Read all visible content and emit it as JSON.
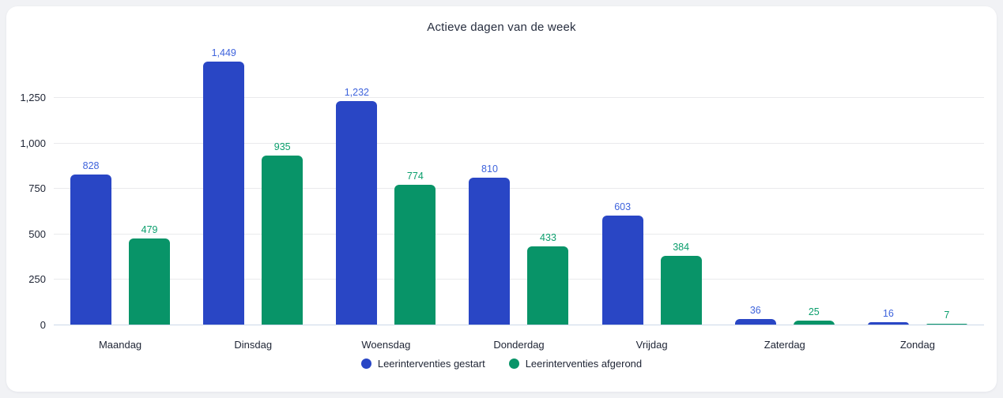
{
  "chart_data": {
    "type": "bar",
    "title": "Actieve dagen van de week",
    "categories": [
      "Maandag",
      "Dinsdag",
      "Woensdag",
      "Donderdag",
      "Vrijdag",
      "Zaterdag",
      "Zondag"
    ],
    "series": [
      {
        "name": "Leerinterventies gestart",
        "color": "#2946c5",
        "label_color": "#3e63dc",
        "values": [
          828,
          1449,
          1232,
          810,
          603,
          36,
          16
        ],
        "labels": [
          "828",
          "1,449",
          "1,232",
          "810",
          "603",
          "36",
          "16"
        ]
      },
      {
        "name": "Leerinterventies afgerond",
        "color": "#089468",
        "label_color": "#0a9e6c",
        "values": [
          479,
          935,
          774,
          433,
          384,
          25,
          7
        ],
        "labels": [
          "479",
          "935",
          "774",
          "433",
          "384",
          "25",
          "7"
        ]
      }
    ],
    "yticks": [
      {
        "value": 0,
        "label": "0"
      },
      {
        "value": 250,
        "label": "250"
      },
      {
        "value": 500,
        "label": "500"
      },
      {
        "value": 750,
        "label": "750"
      },
      {
        "value": 1000,
        "label": "1,000"
      },
      {
        "value": 1250,
        "label": "1,250"
      }
    ],
    "ylim": [
      0,
      1562
    ],
    "grid": true,
    "legend_position": "bottom"
  }
}
